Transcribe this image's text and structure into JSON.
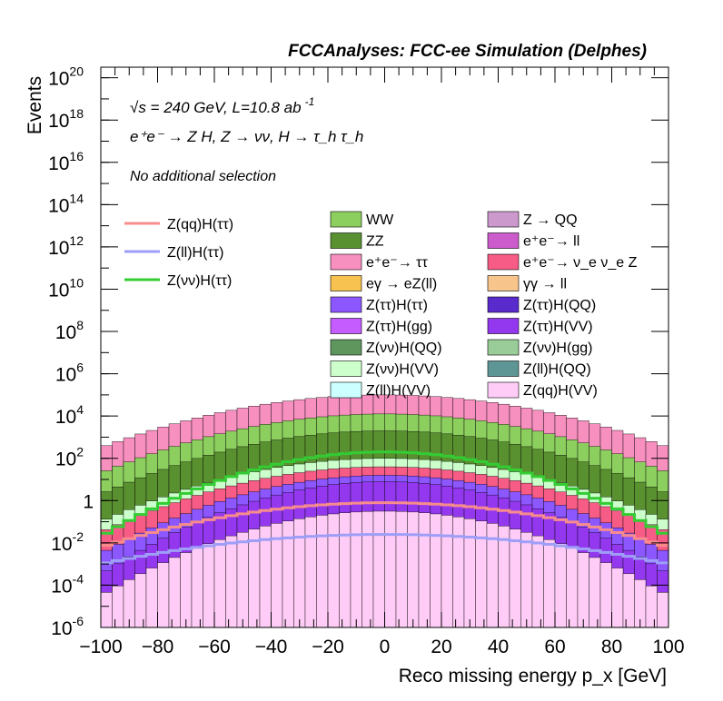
{
  "header": "FCCAnalyses: FCC-ee Simulation (Delphes)",
  "annotations": {
    "energy": "√s = 240 GeV, L=10.8 ab",
    "energy_sup": "-1",
    "process": "e⁺e⁻ → Z H, Z → νν, H → τ_h τ_h",
    "selection": "No additional selection"
  },
  "chart_data": {
    "type": "histogram",
    "xlabel": "Reco missing energy p_x [GeV]",
    "ylabel": "Events",
    "xlim": [
      -100,
      100
    ],
    "ylim_log10": [
      -6,
      20.5
    ],
    "yscale": "log",
    "x_ticks": [
      "−100",
      "−80",
      "−60",
      "−40",
      "−20",
      "0",
      "20",
      "40",
      "60",
      "80",
      "100"
    ],
    "y_ticks": [
      {
        "exp": -6,
        "label": "10",
        "sup": "-6"
      },
      {
        "exp": -4,
        "label": "10",
        "sup": "-4"
      },
      {
        "exp": -2,
        "label": "10",
        "sup": "-2"
      },
      {
        "exp": 0,
        "label": "1",
        "sup": ""
      },
      {
        "exp": 2,
        "label": "10",
        "sup": "2"
      },
      {
        "exp": 4,
        "label": "10",
        "sup": "4"
      },
      {
        "exp": 6,
        "label": "10",
        "sup": "6"
      },
      {
        "exp": 8,
        "label": "10",
        "sup": "8"
      },
      {
        "exp": 10,
        "label": "10",
        "sup": "10"
      },
      {
        "exp": 12,
        "label": "10",
        "sup": "12"
      },
      {
        "exp": 14,
        "label": "10",
        "sup": "14"
      },
      {
        "exp": 16,
        "label": "10",
        "sup": "16"
      },
      {
        "exp": 18,
        "label": "10",
        "sup": "18"
      },
      {
        "exp": 20,
        "label": "10",
        "sup": "20"
      }
    ],
    "stack_envelopes_log10": [
      {
        "name": "e⁺e⁻→ ττ",
        "color": "#f78fbf",
        "peak": 5.0,
        "edge": 2.5
      },
      {
        "name": "WW",
        "color": "#8ccf5e",
        "peak": 4.1,
        "edge": 1.3
      },
      {
        "name": "ZZ",
        "color": "#5a9130",
        "peak": 3.3,
        "edge": 0.3
      },
      {
        "name": "Z(νν)H(VV)",
        "color": "#ccffcc",
        "peak": 2.0,
        "edge": -1.0
      },
      {
        "name": "e⁺e⁻→ ν_e ν_e Z",
        "color": "#f75c86",
        "peak": 1.6,
        "edge": -1.5
      },
      {
        "name": "Z(ττ)H(ττ)",
        "color": "#8c57ff",
        "peak": 1.2,
        "edge": -2.5
      },
      {
        "name": "Z(ττ)H(VV)",
        "color": "#9438f0",
        "peak": 0.9,
        "edge": -3.5
      },
      {
        "name": "Z(qq)H(VV)",
        "color": "#ffccf7",
        "peak": -0.5,
        "edge": -4.5
      }
    ],
    "signal_lines": [
      {
        "name": "Z(qq)H(ττ)",
        "color": "#f78c8c",
        "peak": -0.1,
        "edge": -2.2
      },
      {
        "name": "Z(ll)H(ττ)",
        "color": "#9e9ef7",
        "peak": -1.6,
        "edge": -3.0
      },
      {
        "name": "Z(νν)H(ττ)",
        "color": "#33cc33",
        "peak": 2.3,
        "edge": -1.7
      }
    ],
    "legend_signals": [
      {
        "name": "Z(qq)H(ττ)",
        "color": "#f78c8c"
      },
      {
        "name": "Z(ll)H(ττ)",
        "color": "#9e9ef7"
      },
      {
        "name": "Z(νν)H(ττ)",
        "color": "#33cc33"
      }
    ],
    "legend_backgrounds": [
      {
        "name": "WW",
        "color": "#8ccf5e"
      },
      {
        "name": "Z → QQ",
        "color": "#cc99cc"
      },
      {
        "name": "ZZ",
        "color": "#5a9130"
      },
      {
        "name": "e⁺e⁻→ ll",
        "color": "#cc5ccc"
      },
      {
        "name": "e⁺e⁻→ ττ",
        "color": "#f78fbf"
      },
      {
        "name": "e⁺e⁻→ ν_e ν_e Z",
        "color": "#f75c86"
      },
      {
        "name": "eγ → eZ(ll)",
        "color": "#f7c24f"
      },
      {
        "name": "γγ → ll",
        "color": "#f7c48c"
      },
      {
        "name": "Z(ττ)H(ττ)",
        "color": "#8c57ff"
      },
      {
        "name": "Z(ττ)H(QQ)",
        "color": "#5a2bcc"
      },
      {
        "name": "Z(ττ)H(gg)",
        "color": "#c45cff"
      },
      {
        "name": "Z(ττ)H(VV)",
        "color": "#9438f0"
      },
      {
        "name": "Z(νν)H(QQ)",
        "color": "#5e965e"
      },
      {
        "name": "Z(νν)H(gg)",
        "color": "#99cc99"
      },
      {
        "name": "Z(νν)H(VV)",
        "color": "#ccffcc"
      },
      {
        "name": "Z(ll)H(QQ)",
        "color": "#5e9696"
      },
      {
        "name": "Z(ll)H(VV)",
        "color": "#ccffff"
      },
      {
        "name": "Z(qq)H(VV)",
        "color": "#ffccf7"
      }
    ]
  }
}
